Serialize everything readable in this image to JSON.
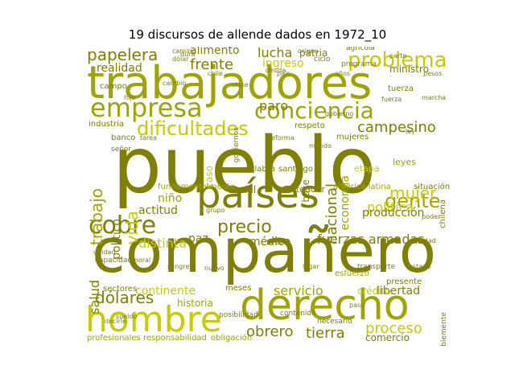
{
  "title": "19 discursos de allende dados en 1972_10",
  "colors": {
    "dark": "#7f7f00",
    "mid": "#9ea500",
    "bright": "#c7cc00",
    "pale": "#d6db40"
  },
  "words": [
    {
      "id": "pueblo",
      "text": "pueblo",
      "color": "dark",
      "rot": 0
    },
    {
      "id": "trabajadores",
      "text": "trabajadores",
      "color": "mid",
      "rot": 0
    },
    {
      "id": "companero",
      "text": "compañero",
      "color": "dark",
      "rot": 0
    },
    {
      "id": "paises",
      "text": "países",
      "color": "dark",
      "rot": 0
    },
    {
      "id": "derecho",
      "text": "derecho",
      "color": "mid",
      "rot": 0
    },
    {
      "id": "hombre",
      "text": "hombre",
      "color": "bright",
      "rot": 0
    },
    {
      "id": "empresa",
      "text": "empresa",
      "color": "mid",
      "rot": 0
    },
    {
      "id": "conciencia",
      "text": "conciencia",
      "color": "mid",
      "rot": 0
    },
    {
      "id": "cobre",
      "text": "cobre",
      "color": "dark",
      "rot": 0
    },
    {
      "id": "problema",
      "text": "problema",
      "color": "bright",
      "rot": 0
    },
    {
      "id": "dificultades",
      "text": "dificultades",
      "color": "bright",
      "rot": 0
    },
    {
      "id": "gente",
      "text": "gente",
      "color": "mid",
      "rot": 0
    },
    {
      "id": "precio",
      "text": "precio",
      "color": "dark",
      "rot": 0
    },
    {
      "id": "mujer",
      "text": "mujer",
      "color": "bright",
      "rot": 0
    },
    {
      "id": "papelera",
      "text": "papelera",
      "color": "dark",
      "rot": 0
    },
    {
      "id": "trabajo",
      "text": "trabajo",
      "color": "mid",
      "rot": -90
    },
    {
      "id": "vida",
      "text": "vida",
      "color": "bright",
      "rot": -90
    },
    {
      "id": "campesino",
      "text": "campesino",
      "color": "dark",
      "rot": 0
    },
    {
      "id": "frente",
      "text": "frente",
      "color": "dark",
      "rot": 0
    },
    {
      "id": "lucha",
      "text": "lucha",
      "color": "dark",
      "rot": 0
    },
    {
      "id": "realidad",
      "text": "realidad",
      "color": "dark",
      "rot": 0
    },
    {
      "id": "alimento",
      "text": "alimento",
      "color": "dark",
      "rot": 0
    },
    {
      "id": "ingreso",
      "text": "ingreso",
      "color": "bright",
      "rot": 0
    },
    {
      "id": "paro",
      "text": "paro",
      "color": "dark",
      "rot": 0
    },
    {
      "id": "politica",
      "text": "política",
      "color": "bright",
      "rot": 0
    },
    {
      "id": "fuerzas-armadas",
      "text": "fuerzas armadas",
      "color": "dark",
      "rot": 0
    },
    {
      "id": "proceso",
      "text": "proceso",
      "color": "bright",
      "rot": 0
    },
    {
      "id": "dolares",
      "text": "dólares",
      "color": "dark",
      "rot": 0
    },
    {
      "id": "obrero",
      "text": "obrero",
      "color": "dark",
      "rot": 0
    },
    {
      "id": "tierra",
      "text": "tierra",
      "color": "dark",
      "rot": 0
    },
    {
      "id": "servicio",
      "text": "servicio",
      "color": "mid",
      "rot": 0
    },
    {
      "id": "libertad",
      "text": "libertad",
      "color": "dark",
      "rot": 0
    },
    {
      "id": "actitud",
      "text": "actitud",
      "color": "dark",
      "rot": 0
    },
    {
      "id": "distinta",
      "text": "distinta",
      "color": "bright",
      "rot": 0
    },
    {
      "id": "medico",
      "text": "médico",
      "color": "dark",
      "rot": 0
    },
    {
      "id": "paz",
      "text": "paz",
      "color": "dark",
      "rot": 0
    },
    {
      "id": "nacional",
      "text": "nacional",
      "color": "dark",
      "rot": -90
    },
    {
      "id": "produccion",
      "text": "producción",
      "color": "dark",
      "rot": 0
    },
    {
      "id": "continente",
      "text": "continente",
      "color": "bright",
      "rot": 0
    },
    {
      "id": "historia",
      "text": "historia",
      "color": "mid",
      "rot": 0
    },
    {
      "id": "salud",
      "text": "salud",
      "color": "dark",
      "rot": -90
    },
    {
      "id": "social",
      "text": "social",
      "color": "dark",
      "rot": 0
    },
    {
      "id": "nino",
      "text": "niño",
      "color": "mid",
      "rot": 0
    },
    {
      "id": "politico",
      "text": "político",
      "color": "dark",
      "rot": -90
    },
    {
      "id": "comercio",
      "text": "comercio",
      "color": "dark",
      "rot": 0
    },
    {
      "id": "patria",
      "text": "patria",
      "color": "dark",
      "rot": 0
    },
    {
      "id": "ministro",
      "text": "ministro",
      "color": "dark",
      "rot": 0
    },
    {
      "id": "economia",
      "text": "economía",
      "color": "mid",
      "rot": -90
    },
    {
      "id": "base",
      "text": "base",
      "color": "dark",
      "rot": -90
    },
    {
      "id": "entender",
      "text": "entender",
      "color": "dark",
      "rot": 0
    },
    {
      "id": "credito",
      "text": "crédito",
      "color": "bright",
      "rot": 0
    },
    {
      "id": "industria",
      "text": "industria",
      "color": "dark",
      "rot": 0
    },
    {
      "id": "banco",
      "text": "banco",
      "color": "dark",
      "rot": 0
    },
    {
      "id": "sectores",
      "text": "sectores",
      "color": "dark",
      "rot": 0
    },
    {
      "id": "responsabilidad",
      "text": "responsabilidad",
      "color": "mid",
      "rot": 0
    },
    {
      "id": "profesionales",
      "text": "profesionales",
      "color": "mid",
      "rot": 0
    },
    {
      "id": "obligacion",
      "text": "obligación",
      "color": "mid",
      "rot": 0
    },
    {
      "id": "palabra",
      "text": "palabra",
      "color": "dark",
      "rot": 0
    },
    {
      "id": "santiago",
      "text": "santiago",
      "color": "dark",
      "rot": 0
    },
    {
      "id": "america-latina",
      "text": "américa latina",
      "color": "mid",
      "rot": 0
    },
    {
      "id": "campo",
      "text": "campo",
      "color": "dark",
      "rot": 0
    },
    {
      "id": "tuerza",
      "text": "tuerza",
      "color": "dark",
      "rot": 0
    },
    {
      "id": "leyes",
      "text": "leyes",
      "color": "mid",
      "rot": 0
    },
    {
      "id": "respecto",
      "text": "respeto",
      "color": "dark",
      "rot": 0
    },
    {
      "id": "mujeres",
      "text": "mujeres",
      "color": "dark",
      "rot": 0
    },
    {
      "id": "meses",
      "text": "meses",
      "color": "dark",
      "rot": 0
    },
    {
      "id": "fundamentalmente",
      "text": "fundamentalmente",
      "color": "mid",
      "rot": 0
    },
    {
      "id": "capacidad",
      "text": "capacidad",
      "color": "dark",
      "rot": 0
    },
    {
      "id": "esfuerzo",
      "text": "esfuerzo",
      "color": "mid",
      "rot": 0
    },
    {
      "id": "situacion",
      "text": "situación",
      "color": "dark",
      "rot": 0
    },
    {
      "id": "etapa",
      "text": "etapa",
      "color": "bright",
      "rot": 0
    },
    {
      "id": "presente",
      "text": "presente",
      "color": "dark",
      "rot": 0
    },
    {
      "id": "contenido",
      "text": "contenido",
      "color": "dark",
      "rot": 0
    },
    {
      "id": "necesario",
      "text": "necesario",
      "color": "dark",
      "rot": 0
    },
    {
      "id": "chilena",
      "text": "chilena",
      "color": "dark",
      "rot": -90
    },
    {
      "id": "posibilidad",
      "text": "posibilidad",
      "color": "dark",
      "rot": 0
    },
    {
      "id": "agricola",
      "text": "agrícola",
      "color": "dark",
      "rot": 0
    },
    {
      "id": "programa",
      "text": "programa",
      "color": "dark",
      "rot": 0
    },
    {
      "id": "gobiernos",
      "text": "gobiernos",
      "color": "dark",
      "rot": -90
    },
    {
      "id": "transporte",
      "text": "transporte",
      "color": "dark",
      "rot": 0
    },
    {
      "id": "caso",
      "text": "caso",
      "color": "bright",
      "rot": -90
    },
    {
      "id": "senor",
      "text": "señor",
      "color": "dark",
      "rot": 0
    },
    {
      "id": "lamentablemente",
      "text": "lamentablemente",
      "color": "dark",
      "rot": -90
    },
    {
      "id": "ciclo",
      "text": "ciclo",
      "color": "dark",
      "rot": 0
    },
    {
      "id": "camino",
      "text": "camino",
      "color": "dark",
      "rot": 0
    },
    {
      "id": "dolar",
      "text": "dólar",
      "color": "dark",
      "rot": 0
    },
    {
      "id": "anos",
      "text": "años",
      "color": "dark",
      "rot": 0
    },
    {
      "id": "chile",
      "text": "chile",
      "color": "dark",
      "rot": 0
    },
    {
      "id": "tarea",
      "text": "tarea",
      "color": "dark",
      "rot": 0
    },
    {
      "id": "pais",
      "text": "país",
      "color": "dark",
      "rot": 0
    },
    {
      "id": "decirle",
      "text": "decirle",
      "color": "dark",
      "rot": 0
    },
    {
      "id": "nuevo",
      "text": "nuevo",
      "color": "dark",
      "rot": 0
    },
    {
      "id": "lugar",
      "text": "lugar",
      "color": "dark",
      "rot": 0
    },
    {
      "id": "pesos",
      "text": "pesos",
      "color": "dark",
      "rot": 0
    },
    {
      "id": "marcha",
      "text": "marcha",
      "color": "dark",
      "rot": 0
    },
    {
      "id": "origen",
      "text": "origen",
      "color": "dark",
      "rot": 0
    },
    {
      "id": "deuda",
      "text": "deuda",
      "color": "dark",
      "rot": 0
    },
    {
      "id": "cambio",
      "text": "cambio",
      "color": "dark",
      "rot": 0
    },
    {
      "id": "clase",
      "text": "clase",
      "color": "dark",
      "rot": 0
    },
    {
      "id": "grupo",
      "text": "grupo",
      "color": "dark",
      "rot": 0
    },
    {
      "id": "reforma",
      "text": "reforma",
      "color": "dark",
      "rot": 0
    },
    {
      "id": "mundo",
      "text": "mundo",
      "color": "dark",
      "rot": 0
    },
    {
      "id": "ley",
      "text": "ley",
      "color": "dark",
      "rot": 0
    },
    {
      "id": "fuerza",
      "text": "fuerza",
      "color": "dark",
      "rot": 0
    },
    {
      "id": "paso",
      "text": "paso",
      "color": "dark",
      "rot": 0
    },
    {
      "id": "unidad",
      "text": "unidad",
      "color": "dark",
      "rot": 0
    },
    {
      "id": "moral",
      "text": "moral",
      "color": "dark",
      "rot": 0
    },
    {
      "id": "sangre",
      "text": "sangre",
      "color": "dark",
      "rot": 0
    },
    {
      "id": "sueldo",
      "text": "sueldo",
      "color": "dark",
      "rot": 0
    },
    {
      "id": "verdad",
      "text": "verdad",
      "color": "dark",
      "rot": 0
    },
    {
      "id": "obra",
      "text": "obra",
      "color": "dark",
      "rot": 0
    },
    {
      "id": "poder",
      "text": "poder",
      "color": "dark",
      "rot": 0
    },
    {
      "id": "gobierno",
      "text": "gobierno",
      "color": "dark",
      "rot": 0
    },
    {
      "id": "hijo",
      "text": "hijo",
      "color": "dark",
      "rot": 0
    },
    {
      "id": "dura",
      "text": "dura",
      "color": "dark",
      "rot": 0
    },
    {
      "id": "parte",
      "text": "parte",
      "color": "dark",
      "rot": 0
    },
    {
      "id": "estado",
      "text": "estado",
      "color": "dark",
      "rot": 0
    }
  ]
}
